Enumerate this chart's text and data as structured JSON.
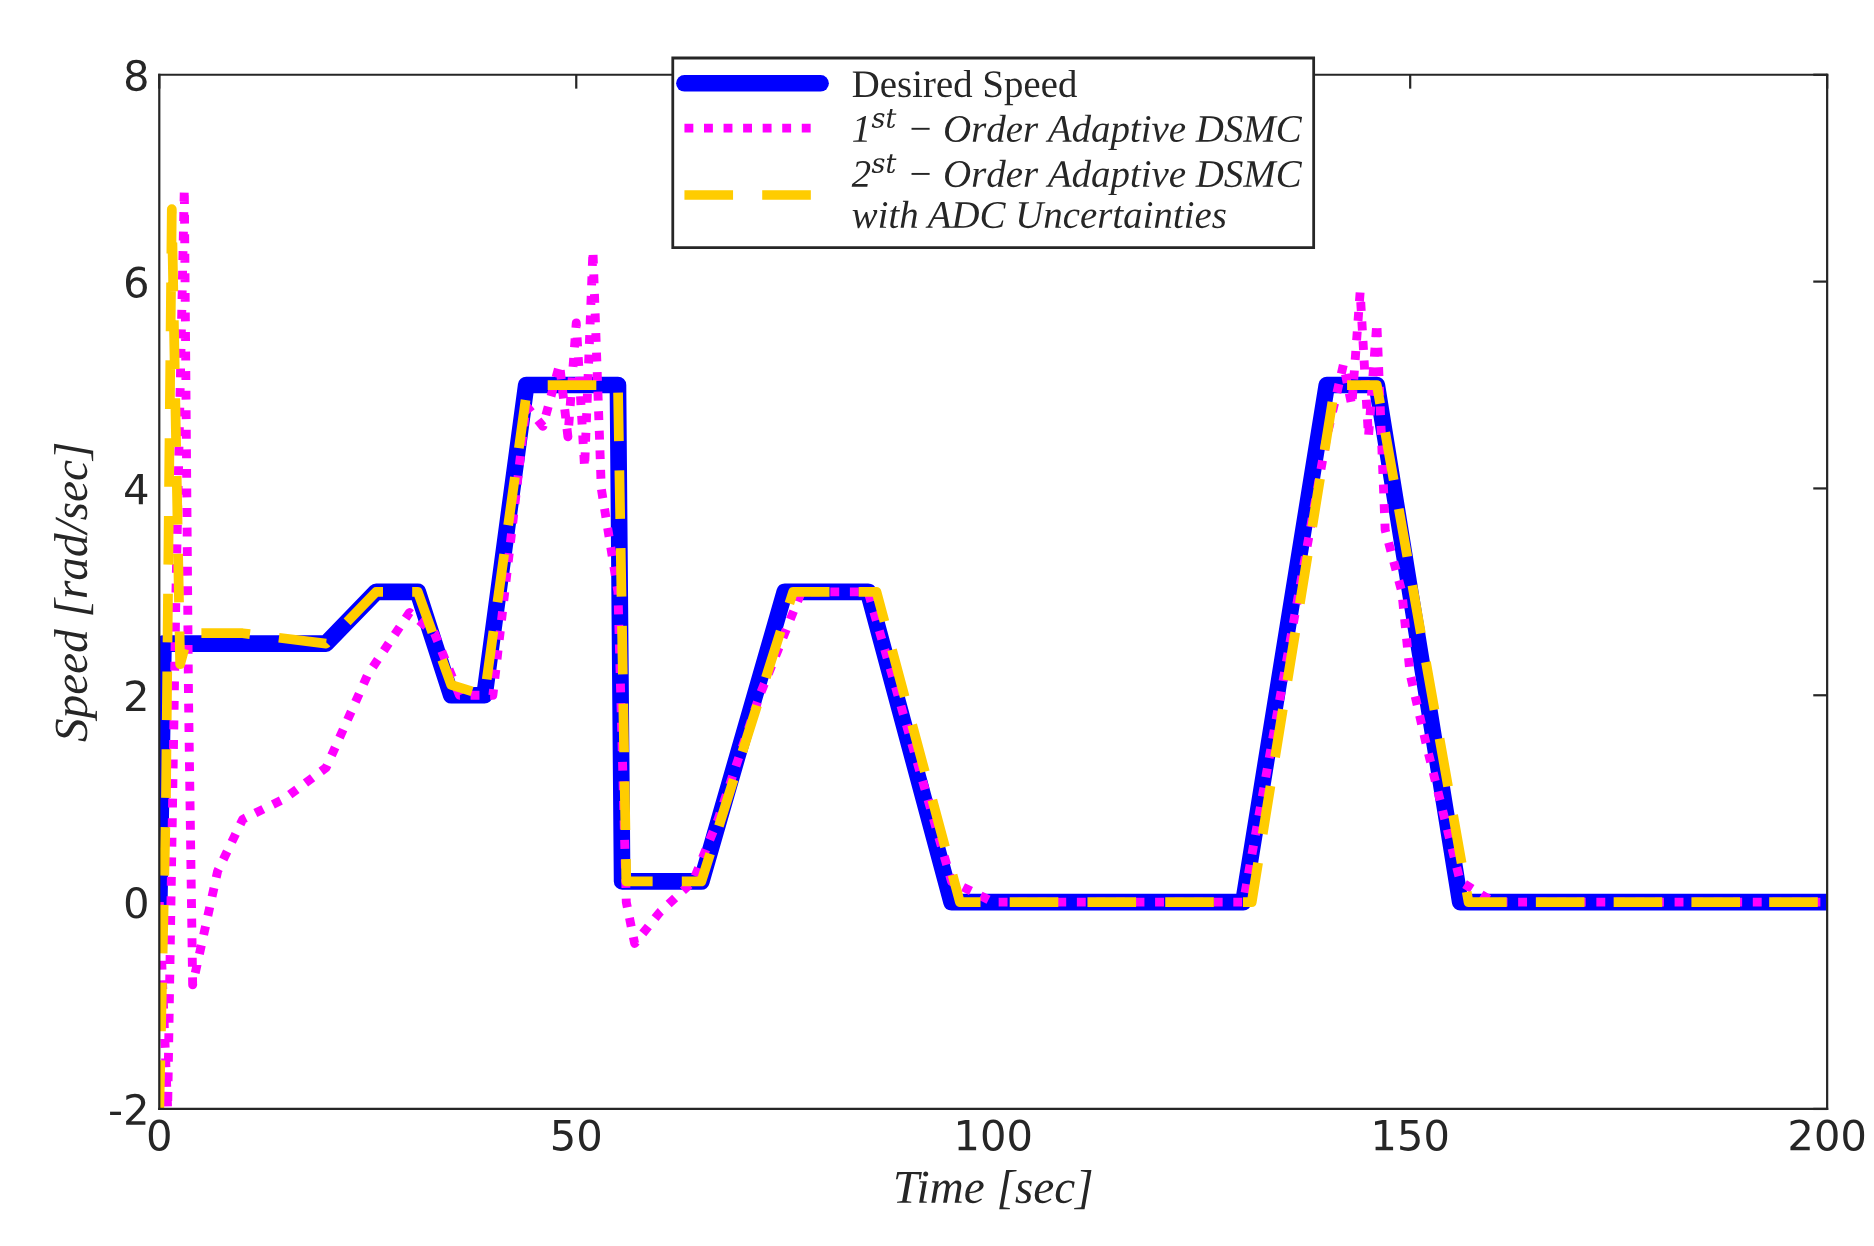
{
  "chart_data": {
    "type": "line",
    "xlabel": "Time [sec]",
    "ylabel": "Speed [rad/sec]",
    "xlim": [
      0,
      200
    ],
    "xticks": [
      0,
      50,
      100,
      150,
      200
    ],
    "ylim": [
      -2,
      8
    ],
    "yticks": [
      {
        "value": -2,
        "label": "-2"
      },
      0,
      2,
      4,
      6,
      8
    ],
    "grid": false,
    "legend": "top",
    "series": [
      {
        "name": "Desired Speed",
        "color": "#0000ff",
        "line_style": "solid",
        "x": [
          0,
          0.5,
          20,
          26,
          31,
          35,
          39,
          44,
          55,
          55.5,
          65,
          75,
          85,
          95,
          130,
          140,
          146,
          156,
          200
        ],
        "values": [
          0,
          2.5,
          2.5,
          3,
          3,
          2,
          2,
          5,
          5,
          0.2,
          0.2,
          3,
          3,
          0,
          0,
          5,
          5,
          0,
          0
        ]
      },
      {
        "name": "1$^{st}$ − Order Adaptive DSMC",
        "color": "#ff00ff",
        "line_style": "dotted",
        "x": [
          0,
          1,
          2,
          3,
          3.5,
          4,
          7,
          10,
          15,
          20,
          25,
          30,
          33,
          36,
          40,
          44,
          46,
          48,
          49,
          50,
          51,
          52,
          53,
          55,
          56,
          57,
          60,
          64,
          67,
          72,
          77,
          85,
          95,
          100,
          130,
          140,
          142,
          143,
          144,
          145,
          146,
          147,
          149,
          150,
          152,
          156,
          160,
          200
        ],
        "values": [
          0,
          -2,
          3,
          6.9,
          2,
          -0.8,
          0.3,
          0.8,
          1.0,
          1.3,
          2.2,
          2.8,
          2.6,
          2.0,
          2.0,
          4.8,
          4.6,
          5.2,
          4.5,
          5.6,
          4.2,
          6.3,
          4.0,
          3.0,
          0,
          -0.4,
          -0.1,
          0.2,
          0.8,
          2.0,
          3.0,
          3.0,
          0.2,
          0,
          0,
          4.5,
          5.2,
          4.8,
          5.9,
          4.5,
          5.6,
          3.6,
          3.0,
          2.2,
          1.5,
          0.2,
          0,
          0
        ]
      },
      {
        "name": "2$^{st}$ − Order Adaptive DSMC\nwith ADC Uncertainties",
        "color": "#ffcc00",
        "line_style": "dashed",
        "x": [
          0,
          0.8,
          1.5,
          2.5,
          3.5,
          10,
          20,
          26,
          31,
          35,
          39,
          44,
          46,
          55,
          56,
          65,
          76,
          86,
          96,
          131,
          141,
          146,
          157,
          200
        ],
        "values": [
          -2,
          1,
          6.7,
          2.3,
          2.6,
          2.6,
          2.5,
          3,
          3,
          2.1,
          2,
          4.9,
          5,
          5,
          0.2,
          0.2,
          3,
          3,
          0,
          0,
          5,
          5,
          0,
          0
        ]
      }
    ]
  }
}
